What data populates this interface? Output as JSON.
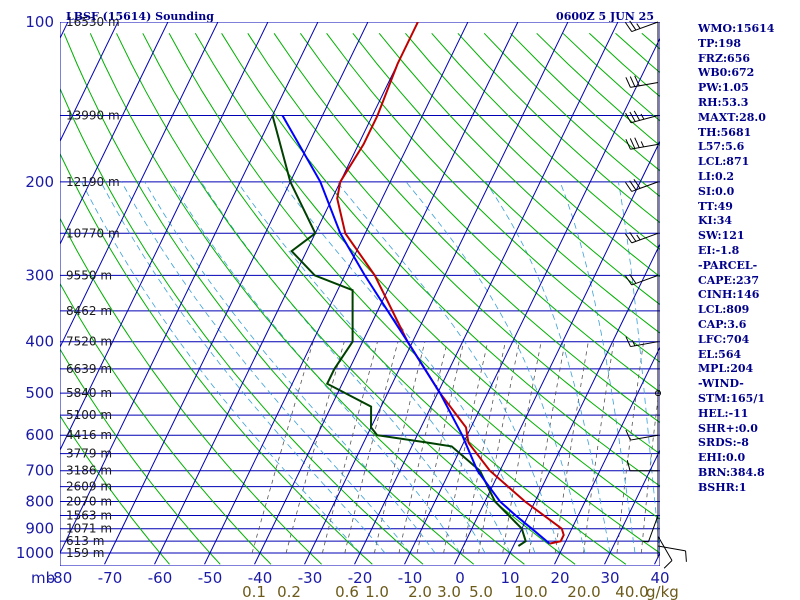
{
  "header": {
    "station": "LBSF (15614) Sounding",
    "time": "0600Z  5 JUN 25"
  },
  "colors": {
    "isobar": "#0000b4",
    "isotherm": "#0000b4",
    "dry_adiabat": "#00b000",
    "moist_adiabat": "#3aa0d8",
    "mixing_ratio": "#555555",
    "temperature": "#c00000",
    "dewpoint": "#004000",
    "parcel": "#0000ff",
    "wind": "#000000",
    "axis_text": "#1a1aa6",
    "mixing_text": "#6b5a1a"
  },
  "chart_data": {
    "type": "skew-t",
    "pressure_axis": {
      "type": "log",
      "ylim": [
        1000,
        100
      ],
      "ticks": [
        100,
        200,
        300,
        400,
        500,
        600,
        700,
        800,
        900,
        1000
      ],
      "unit_label": "mb"
    },
    "isobars_extra": [
      150,
      250,
      350,
      450,
      550,
      650,
      750,
      850,
      950
    ],
    "temperature_axis": {
      "xlim": [
        -80,
        40
      ],
      "ticks": [
        -80,
        -70,
        -60,
        -50,
        -40,
        -30,
        -20,
        -10,
        0,
        10,
        20,
        30,
        40
      ]
    },
    "heights": [
      {
        "label": "16530 m",
        "p": 100
      },
      {
        "label": "13990 m",
        "p": 150
      },
      {
        "label": "12190 m",
        "p": 200
      },
      {
        "label": "10770 m",
        "p": 250
      },
      {
        "label": "9550 m",
        "p": 300
      },
      {
        "label": "8462 m",
        "p": 350
      },
      {
        "label": "7520 m",
        "p": 400
      },
      {
        "label": "6639 m",
        "p": 450
      },
      {
        "label": "5840 m",
        "p": 500
      },
      {
        "label": "5100 m",
        "p": 550
      },
      {
        "label": "4416 m",
        "p": 600
      },
      {
        "label": "3779 m",
        "p": 650
      },
      {
        "label": "3186 m",
        "p": 700
      },
      {
        "label": "2609 m",
        "p": 750
      },
      {
        "label": "2070 m",
        "p": 800
      },
      {
        "label": "1563 m",
        "p": 850
      },
      {
        "label": "1071 m",
        "p": 900
      },
      {
        "label": "613 m",
        "p": 950
      },
      {
        "label": "159 m",
        "p": 1000
      }
    ],
    "mixing_ratio_labels": [
      "0.1",
      "0.2",
      "0.6",
      "1.0",
      "2.0",
      "3.0",
      "5.0",
      "10.0",
      "20.0",
      "40.0"
    ],
    "mixing_ratio_unit": "g/kg",
    "series": [
      {
        "name": "temperature",
        "points": [
          [
            100,
            -60
          ],
          [
            120,
            -60
          ],
          [
            150,
            -59
          ],
          [
            170,
            -59
          ],
          [
            200,
            -60
          ],
          [
            215,
            -59
          ],
          [
            250,
            -54
          ],
          [
            300,
            -44
          ],
          [
            400,
            -31
          ],
          [
            500,
            -19.5
          ],
          [
            580,
            -11
          ],
          [
            600,
            -10
          ],
          [
            620,
            -9
          ],
          [
            700,
            -2
          ],
          [
            800,
            8
          ],
          [
            900,
            18
          ],
          [
            925,
            19
          ],
          [
            950,
            19
          ],
          [
            960,
            17
          ]
        ]
      },
      {
        "name": "dewpoint",
        "points": [
          [
            150,
            -80
          ],
          [
            200,
            -70
          ],
          [
            250,
            -60
          ],
          [
            270,
            -63
          ],
          [
            300,
            -56
          ],
          [
            320,
            -47
          ],
          [
            400,
            -42
          ],
          [
            450,
            -43
          ],
          [
            480,
            -43
          ],
          [
            530,
            -32
          ],
          [
            580,
            -30
          ],
          [
            600,
            -28
          ],
          [
            620,
            -17
          ],
          [
            630,
            -12
          ],
          [
            700,
            -4
          ],
          [
            800,
            2
          ],
          [
            900,
            10
          ],
          [
            950,
            12
          ],
          [
            970,
            11
          ]
        ]
      },
      {
        "name": "parcel",
        "points": [
          [
            960,
            17
          ],
          [
            900,
            12
          ],
          [
            850,
            7.5
          ],
          [
            800,
            3
          ],
          [
            700,
            -4.5
          ],
          [
            600,
            -11
          ],
          [
            500,
            -19.5
          ],
          [
            400,
            -31
          ],
          [
            300,
            -46
          ],
          [
            250,
            -55
          ],
          [
            200,
            -64
          ],
          [
            150,
            -78
          ]
        ]
      }
    ],
    "wind_barbs": [
      {
        "p": 970,
        "dir": 100,
        "kt": 10
      },
      {
        "p": 930,
        "dir": 150,
        "kt": 10
      },
      {
        "p": 850,
        "dir": 200,
        "kt": 5
      },
      {
        "p": 700,
        "dir": 270,
        "kt": 10
      },
      {
        "p": 600,
        "dir": 260,
        "kt": 10
      },
      {
        "p": 500,
        "dir": 250,
        "kt": 0
      },
      {
        "p": 400,
        "dir": 260,
        "kt": 15
      },
      {
        "p": 300,
        "dir": 250,
        "kt": 20
      },
      {
        "p": 250,
        "dir": 250,
        "kt": 25
      },
      {
        "p": 200,
        "dir": 250,
        "kt": 30
      },
      {
        "p": 170,
        "dir": 260,
        "kt": 35
      },
      {
        "p": 150,
        "dir": 255,
        "kt": 35
      },
      {
        "p": 130,
        "dir": 260,
        "kt": 30
      },
      {
        "p": 100,
        "dir": 250,
        "kt": 25
      }
    ]
  },
  "indices": [
    "WMO:15614",
    "TP:198",
    "FRZ:656",
    "WB0:672",
    "PW:1.05",
    "RH:53.3",
    "MAXT:28.0",
    "TH:5681",
    "L57:5.6",
    "LCL:871",
    "LI:0.2",
    "SI:0.0",
    "TT:49",
    "KI:34",
    "SW:121",
    "EI:-1.8",
    "-PARCEL-",
    "CAPE:237",
    "CINH:146",
    "LCL:809",
    "CAP:3.6",
    "LFC:704",
    "EL:564",
    "MPL:204",
    "-WIND-",
    "STM:165/1",
    "HEL:-11",
    "SHR+:0.0",
    "SRDS:-8",
    "EHI:0.0",
    "BRN:384.8",
    "BSHR:1"
  ]
}
